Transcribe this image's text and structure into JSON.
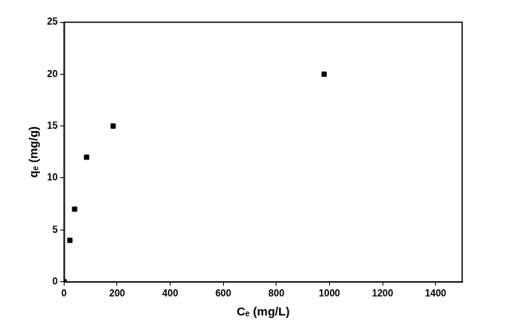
{
  "chart_data": {
    "type": "scatter",
    "x_label": "Cₑ (mg/L)",
    "y_label": "qₑ (mg/g)",
    "x": [
      0,
      22,
      40,
      85,
      185,
      980
    ],
    "values": [
      0,
      4,
      7,
      12,
      15,
      20
    ],
    "color": "#000000",
    "marker": "square",
    "xlim": [
      0,
      1500
    ],
    "xticks": [
      0,
      200,
      400,
      600,
      800,
      1000,
      1200,
      1400
    ],
    "ylim": [
      0,
      25
    ],
    "yticks": [
      0,
      5,
      10,
      15,
      20,
      25
    ],
    "grid": false
  }
}
